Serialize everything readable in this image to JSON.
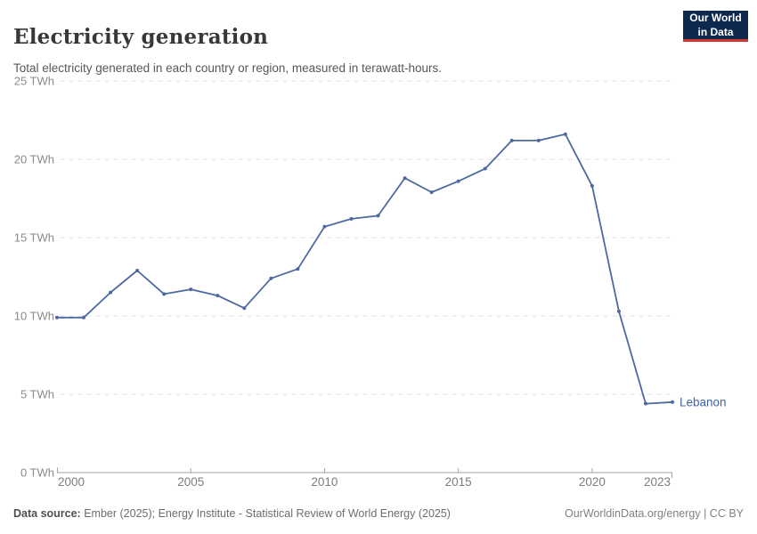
{
  "header": {
    "title": "Electricity generation",
    "subtitle": "Total electricity generated in each country or region, measured in terawatt-hours.",
    "logo": {
      "line1": "Our World",
      "line2": "in Data"
    }
  },
  "footer": {
    "source_label": "Data source:",
    "source_text": " Ember (2025); Energy Institute - Statistical Review of World Energy (2025)",
    "rights": "OurWorldinData.org/energy | CC BY"
  },
  "chart_data": {
    "type": "line",
    "title": "Electricity generation",
    "unit": "TWh",
    "x": [
      2000,
      2001,
      2002,
      2003,
      2004,
      2005,
      2006,
      2007,
      2008,
      2009,
      2010,
      2011,
      2012,
      2013,
      2014,
      2015,
      2016,
      2017,
      2018,
      2019,
      2020,
      2021,
      2022,
      2023
    ],
    "series": [
      {
        "name": "Lebanon",
        "values": [
          9.9,
          9.9,
          11.5,
          12.9,
          11.4,
          11.7,
          11.3,
          10.5,
          12.4,
          13.0,
          15.7,
          16.2,
          16.4,
          18.8,
          17.9,
          18.6,
          19.4,
          21.2,
          21.2,
          21.6,
          18.3,
          10.3,
          4.4,
          4.5
        ]
      }
    ],
    "xlabel": "",
    "ylabel": "",
    "ylim": [
      0,
      25
    ],
    "yticks": [
      0,
      5,
      10,
      15,
      20,
      25
    ],
    "ytick_suffix": " TWh",
    "xticks": [
      2000,
      2005,
      2010,
      2015,
      2020,
      2023
    ],
    "grid": "dashed horizontal gridlines",
    "legend_position": "end-of-line label",
    "colors": {
      "line": "#4d69a0",
      "entity_label": "#3e64a5",
      "gridline": "#e0e0e0",
      "axis": "#a6a6a6",
      "tick_label": "#7d7d7d"
    }
  }
}
